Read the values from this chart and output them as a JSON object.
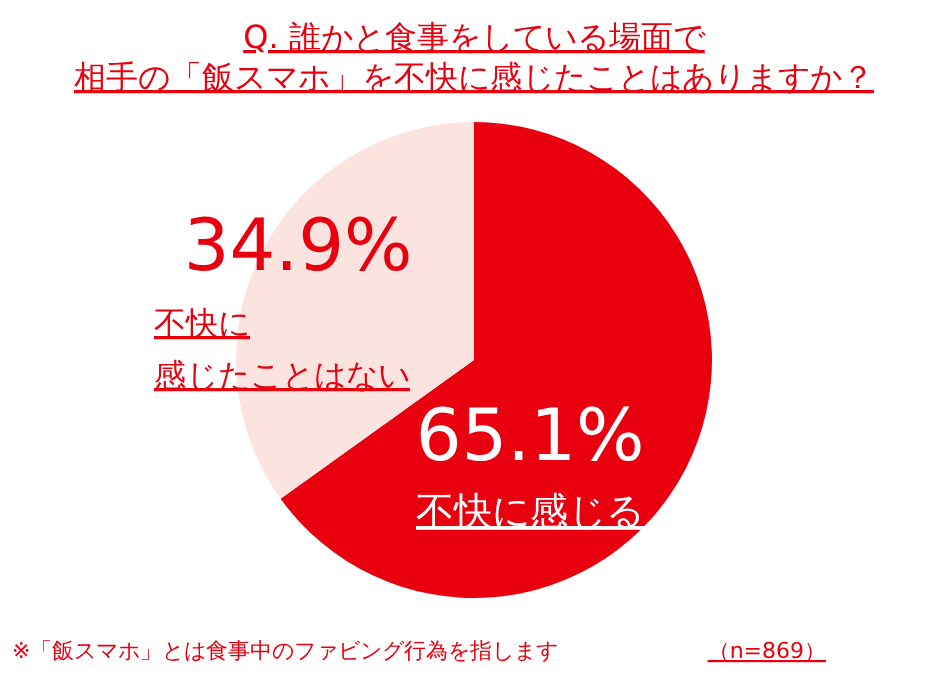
{
  "chart_data": {
    "type": "pie",
    "title": "Q. 誰かと食事をしている場面で",
    "subtitle": "相手の「飯スマホ」を不快に感じたことはありますか？",
    "categories": [
      "不快に感じる",
      "不快に感じたことはない"
    ],
    "values": [
      65.1,
      34.9
    ],
    "colors": [
      "#e8000f",
      "#fbe3df"
    ],
    "value_labels": [
      "65.1%",
      "34.9%"
    ],
    "annotations": [
      "※「飯スマホ」とは食事中のファビング行為を指します",
      "（n=869）"
    ]
  }
}
